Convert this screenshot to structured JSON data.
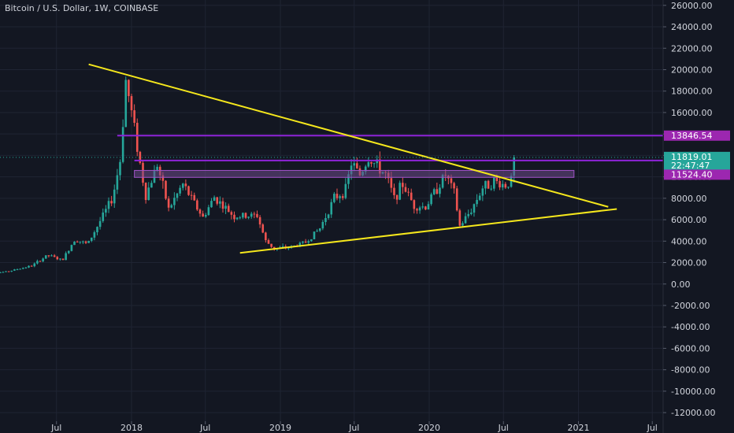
{
  "header": {
    "title": "Bitcoin / U.S. Dollar, 1W, COINBASE"
  },
  "colors": {
    "background": "#131722",
    "grid": "#1f2433",
    "text": "#d1d4dc",
    "up": "#26a69a",
    "down": "#ef5350",
    "trendline": "#f5e71c",
    "resistance": "#8e24d8",
    "zone": "#6d4a8a",
    "price_tag": "#26a69a",
    "level_tag": "#9c27b0"
  },
  "chart_data": {
    "type": "candlestick",
    "title": "Bitcoin / U.S. Dollar, 1W, COINBASE",
    "ylim": [
      -12800,
      26500
    ],
    "y_ticks": [
      26000,
      24000,
      22000,
      20000,
      18000,
      16000,
      14000,
      12000,
      10000,
      8000,
      6000,
      4000,
      2000,
      0,
      -2000,
      -4000,
      -6000,
      -8000,
      -10000,
      -12000
    ],
    "y_tick_labels": [
      "26000.00",
      "24000.00",
      "22000.00",
      "20000.00",
      "18000.00",
      "16000.00",
      "14000.00",
      "12000.00",
      "10000.00",
      "8000.00",
      "6000.00",
      "4000.00",
      "2000.00",
      "0.00",
      "-2000.00",
      "-4000.00",
      "-6000.00",
      "-8000.00",
      "-10000.00",
      "-12000.00"
    ],
    "x_ticks": [
      {
        "label": "Jul",
        "date": "2017-07-01"
      },
      {
        "label": "2018",
        "date": "2018-01-01"
      },
      {
        "label": "Jul",
        "date": "2018-07-01"
      },
      {
        "label": "2019",
        "date": "2019-01-01"
      },
      {
        "label": "Jul",
        "date": "2019-07-01"
      },
      {
        "label": "2020",
        "date": "2020-01-01"
      },
      {
        "label": "Jul",
        "date": "2020-07-01"
      },
      {
        "label": "2021",
        "date": "2021-01-01"
      },
      {
        "label": "Jul",
        "date": "2021-07-01"
      }
    ],
    "price_anchors": [
      [
        "2017-01-02",
        950
      ],
      [
        "2017-03-01",
        1150
      ],
      [
        "2017-05-01",
        1700
      ],
      [
        "2017-06-10",
        2700
      ],
      [
        "2017-07-15",
        2200
      ],
      [
        "2017-08-15",
        4200
      ],
      [
        "2017-09-15",
        3700
      ],
      [
        "2017-10-15",
        5800
      ],
      [
        "2017-11-15",
        8000
      ],
      [
        "2017-12-04",
        11500
      ],
      [
        "2017-12-18",
        19000
      ],
      [
        "2018-01-08",
        14500
      ],
      [
        "2018-01-22",
        11200
      ],
      [
        "2018-02-05",
        8200
      ],
      [
        "2018-03-05",
        11200
      ],
      [
        "2018-04-02",
        7000
      ],
      [
        "2018-05-07",
        9300
      ],
      [
        "2018-06-25",
        6200
      ],
      [
        "2018-07-23",
        8100
      ],
      [
        "2018-09-10",
        6300
      ],
      [
        "2018-11-05",
        6400
      ],
      [
        "2018-11-26",
        4000
      ],
      [
        "2018-12-17",
        3300
      ],
      [
        "2019-01-28",
        3450
      ],
      [
        "2019-03-04",
        3900
      ],
      [
        "2019-04-08",
        5200
      ],
      [
        "2019-05-13",
        8000
      ],
      [
        "2019-06-10",
        8800
      ],
      [
        "2019-06-24",
        11300
      ],
      [
        "2019-07-15",
        10200
      ],
      [
        "2019-08-05",
        11800
      ],
      [
        "2019-09-16",
        10200
      ],
      [
        "2019-10-07",
        8000
      ],
      [
        "2019-10-28",
        9300
      ],
      [
        "2019-11-25",
        7300
      ],
      [
        "2019-12-23",
        7200
      ],
      [
        "2020-02-10",
        10200
      ],
      [
        "2020-03-02",
        8500
      ],
      [
        "2020-03-16",
        5400
      ],
      [
        "2020-04-13",
        6900
      ],
      [
        "2020-05-11",
        9000
      ],
      [
        "2020-06-08",
        9600
      ],
      [
        "2020-07-06",
        9200
      ],
      [
        "2020-07-20",
        9700
      ],
      [
        "2020-07-27",
        11819
      ]
    ],
    "yellow_lines": [
      {
        "from": [
          "2017-09-18",
          20500
        ],
        "to": [
          "2021-03-15",
          7200
        ]
      },
      {
        "from": [
          "2018-09-24",
          2900
        ],
        "to": [
          "2021-04-05",
          7000
        ]
      }
    ],
    "horizontal_lines": [
      {
        "value": 13846.54,
        "label": "13846.54",
        "from": "2017-11-27"
      },
      {
        "value": 11524.4,
        "label": "11524.40",
        "from": "2018-01-08"
      }
    ],
    "zone": {
      "from": "2018-01-08",
      "to": "2020-12-21",
      "low": 9950,
      "high": 10600
    },
    "current_price": {
      "value": 11819.01,
      "label": "11819.01",
      "countdown": "22:47:47"
    }
  }
}
